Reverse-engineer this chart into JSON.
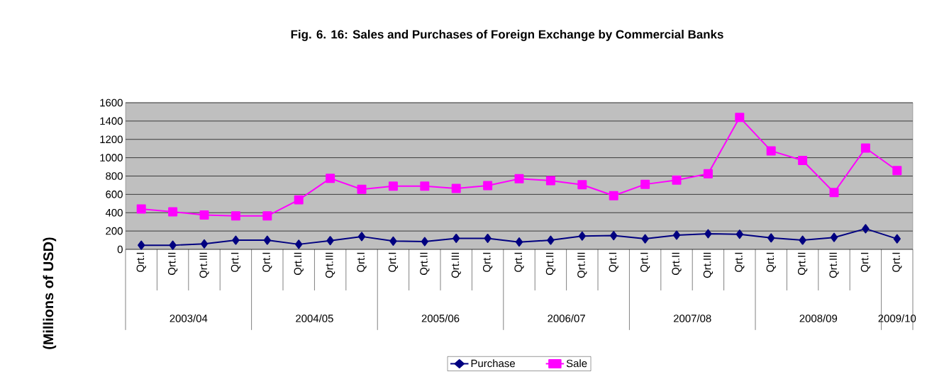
{
  "chart_data": {
    "type": "line",
    "title": "Fig.  6. 16: Sales and Purchases of Foreign Exchange by Commercial Banks",
    "ylabel": "(Millions of USD)",
    "categories": [
      "Qrt.I",
      "Qrt.II",
      "Qrt.III",
      "Qrt.I",
      "Qrt.I",
      "Qrt.II",
      "Qrt.III",
      "Qrt.I",
      "Qrt.I",
      "Qrt.II",
      "Qrt.III",
      "Qrt.I",
      "Qrt.I",
      "Qrt.II",
      "Qrt.III",
      "Qrt.I",
      "Qrt.I",
      "Qrt.II",
      "Qrt.III",
      "Qrt.I",
      "Qrt.I",
      "Qrt.II",
      "Qrt.III",
      "Qrt.I",
      "Qrt.I"
    ],
    "annotations": [
      "2003/04",
      "2004/05",
      "2005/06",
      "2006/07",
      "2007/08",
      "2008/09",
      "2009/10"
    ],
    "series": [
      {
        "name": "Purchase",
        "color": "#000080",
        "marker": "diamond",
        "values": [
          45,
          45,
          60,
          100,
          100,
          55,
          95,
          140,
          90,
          85,
          120,
          120,
          80,
          100,
          145,
          150,
          115,
          155,
          170,
          165,
          125,
          100,
          130,
          225,
          115
        ]
      },
      {
        "name": "Sale",
        "color": "#ff00ff",
        "marker": "square",
        "values": [
          440,
          410,
          375,
          365,
          365,
          540,
          775,
          655,
          690,
          690,
          665,
          695,
          770,
          750,
          705,
          585,
          710,
          755,
          825,
          1440,
          1075,
          970,
          620,
          1105,
          860
        ]
      }
    ],
    "ylim": [
      0,
      1600
    ],
    "yticks": [
      0,
      200,
      400,
      600,
      800,
      1000,
      1200,
      1400,
      1600
    ],
    "grid": "y",
    "legend": "bottom"
  }
}
